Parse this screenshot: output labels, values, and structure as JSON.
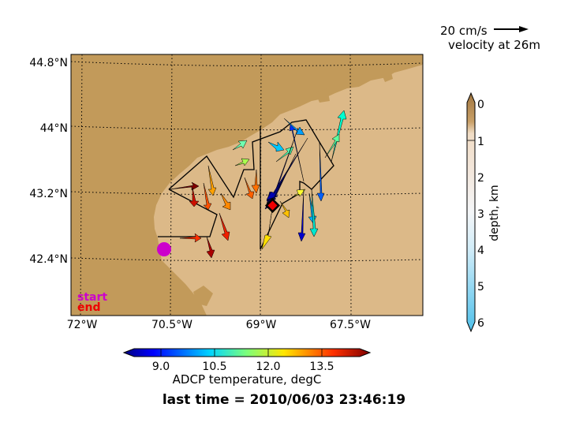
{
  "velocity_legend": {
    "speed_label": "20 cm/s",
    "depth_label": "velocity at 26m"
  },
  "map": {
    "lon_ticks": [
      "72°W",
      "70.5°W",
      "69°W",
      "67.5°W"
    ],
    "lat_ticks": [
      "44.8°N",
      "44°N",
      "43.2°N",
      "42.4°N"
    ],
    "land_color": "#c29a5a",
    "shallow_water_color": "#dcb988",
    "start_label": "start",
    "end_label": "end",
    "start_color": "#cc00cc",
    "end_color": "#ee0000"
  },
  "temperature_colorbar": {
    "title": "ADCP temperature, degC",
    "ticks": [
      "9.0",
      "10.5",
      "12.0",
      "13.5"
    ]
  },
  "depth_colorbar": {
    "title": "depth, km",
    "ticks": [
      "0",
      "1",
      "2",
      "3",
      "4",
      "5",
      "6"
    ]
  },
  "footer": {
    "last_time": "last time = 2010/06/03 23:46:19"
  }
}
